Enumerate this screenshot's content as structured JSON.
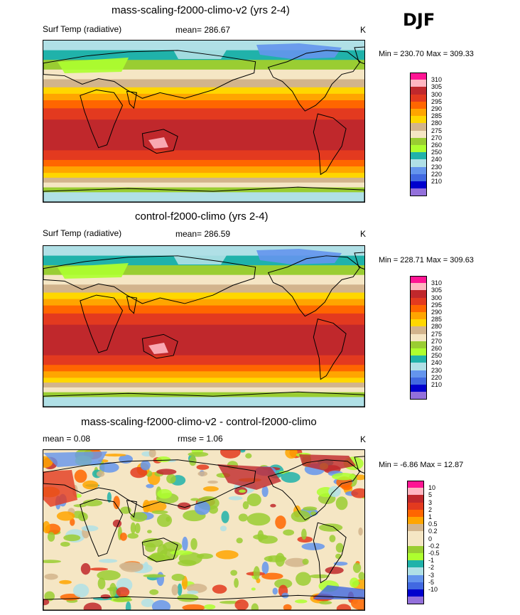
{
  "season": "DJF",
  "panels": [
    {
      "title": "mass-scaling-f2000-climo-v2 (yrs 2-4)",
      "variable": "Surf Temp (radiative)",
      "stat1": "mean= 286.67",
      "stat2": "",
      "units": "K",
      "minmax": "Min = 230.70 Max = 309.33",
      "colorbar": {
        "labels": [
          "310",
          "305",
          "300",
          "295",
          "290",
          "285",
          "280",
          "275",
          "270",
          "260",
          "250",
          "240",
          "230",
          "220",
          "210"
        ],
        "colors": [
          "#ff1493",
          "#ffb6c1",
          "#c0282c",
          "#e33a1f",
          "#ff6600",
          "#ffa500",
          "#ffd700",
          "#d2b48c",
          "#f5e6c4",
          "#9acd32",
          "#adff2f",
          "#20b2aa",
          "#b0e0e6",
          "#6495ed",
          "#4169e1",
          "#0000cd",
          "#9370db"
        ]
      }
    },
    {
      "title": "control-f2000-climo (yrs 2-4)",
      "variable": "Surf Temp (radiative)",
      "stat1": "mean= 286.59",
      "stat2": "",
      "units": "K",
      "minmax": "Min = 228.71 Max = 309.63",
      "colorbar": {
        "labels": [
          "310",
          "305",
          "300",
          "295",
          "290",
          "285",
          "280",
          "275",
          "270",
          "260",
          "250",
          "240",
          "230",
          "220",
          "210"
        ],
        "colors": [
          "#ff1493",
          "#ffb6c1",
          "#c0282c",
          "#e33a1f",
          "#ff6600",
          "#ffa500",
          "#ffd700",
          "#d2b48c",
          "#f5e6c4",
          "#9acd32",
          "#adff2f",
          "#20b2aa",
          "#b0e0e6",
          "#6495ed",
          "#4169e1",
          "#0000cd",
          "#9370db"
        ]
      }
    },
    {
      "title": "mass-scaling-f2000-climo-v2 - control-f2000-climo",
      "variable": "",
      "stat1": "mean =   0.08",
      "stat2": "rmse =   1.06",
      "units": "K",
      "minmax": "Min =  -6.86 Max =  12.87",
      "colorbar": {
        "labels": [
          "10",
          "5",
          "3",
          "2",
          "1",
          "0.5",
          "0.2",
          "0",
          "-0.2",
          "-0.5",
          "-1",
          "-2",
          "-3",
          "-5",
          "-10"
        ],
        "colors": [
          "#ff1493",
          "#ffb6c1",
          "#c0282c",
          "#e33a1f",
          "#ff6600",
          "#ffa500",
          "#d2b48c",
          "#f5e6c4",
          "#f5e6c4",
          "#9acd32",
          "#adff2f",
          "#20b2aa",
          "#b0e0e6",
          "#6495ed",
          "#4169e1",
          "#0000cd",
          "#9370db"
        ]
      }
    }
  ]
}
